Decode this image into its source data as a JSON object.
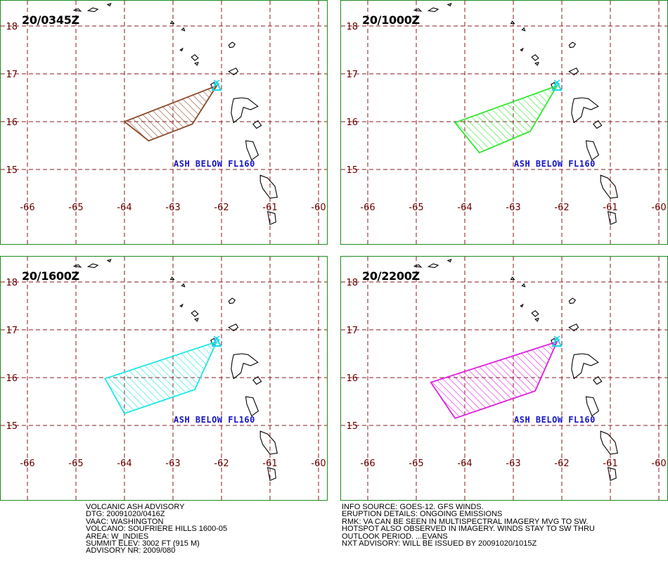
{
  "map": {
    "axes": {
      "lat_ticks": [
        "18",
        "17",
        "16",
        "15"
      ],
      "lon_ticks": [
        "-66",
        "-65",
        "-64",
        "-63",
        "-62",
        "-61",
        "-60"
      ]
    },
    "volcano_icon": "volcano-triangle-icon",
    "colors": {
      "grid": "#8b1a1a",
      "tick_label": "#6b0000",
      "coast": "#000000",
      "frame": "#1f8a1f",
      "volcano": "#18d8e8",
      "ash_label": "#1414c8"
    },
    "panels": [
      {
        "time_label": "20/0345Z",
        "ash_label": "ASH BELOW FL160",
        "color": "#8b4a2b",
        "polygon_lonlat": [
          [
            -62.1,
            16.75
          ],
          [
            -62.6,
            15.95
          ],
          [
            -63.5,
            15.6
          ],
          [
            -64.0,
            16.0
          ]
        ]
      },
      {
        "time_label": "20/1000Z",
        "ash_label": "ASH BELOW FL160",
        "color": "#33e633",
        "polygon_lonlat": [
          [
            -62.1,
            16.75
          ],
          [
            -62.65,
            15.8
          ],
          [
            -63.7,
            15.35
          ],
          [
            -64.2,
            15.98
          ]
        ]
      },
      {
        "time_label": "20/1600Z",
        "ash_label": "ASH BELOW FL160",
        "color": "#22e6e6",
        "polygon_lonlat": [
          [
            -62.1,
            16.75
          ],
          [
            -62.55,
            15.75
          ],
          [
            -64.0,
            15.25
          ],
          [
            -64.4,
            15.98
          ]
        ]
      },
      {
        "time_label": "20/2200Z",
        "ash_label": "ASH BELOW FL160",
        "color": "#dd22dd",
        "polygon_lonlat": [
          [
            -62.1,
            16.75
          ],
          [
            -62.55,
            15.72
          ],
          [
            -64.2,
            15.15
          ],
          [
            -64.7,
            15.9
          ]
        ]
      }
    ]
  },
  "advisory_left": [
    "VOLCANIC ASH ADVISORY",
    "DTG: 20091020/0416Z",
    "VAAC: WASHINGTON",
    "VOLCANO: SOUFRIERE HILLS 1600-05",
    "AREA: W_INDIES",
    "SUMMIT ELEV: 3002 FT (915 M)",
    "ADVISORY NR: 2009/080"
  ],
  "advisory_right": [
    "INFO SOURCE: GOES-12. GFS WINDS.",
    "ERUPTION DETAILS: ONGOING EMISSIONS",
    "RMK: VA CAN BE SEEN IN MULTISPECTRAL IMAGERY MVG TO SW.",
    "HOTSPOT ALSO OBSERVED IN IMAGERY. WINDS STAY TO SW THRU",
    "OUTLOOK PERIOD. ...EVANS",
    "NXT ADVISORY: WILL BE ISSUED BY 20091020/1015Z"
  ]
}
